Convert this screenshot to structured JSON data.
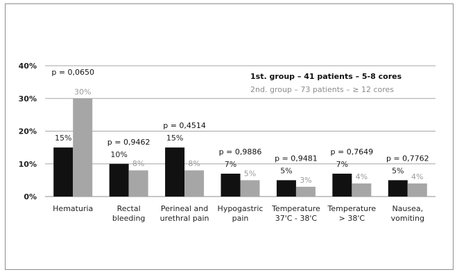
{
  "chart_data": {
    "type": "bar",
    "title": "",
    "xlabel": "",
    "ylabel": "",
    "ylim": [
      0,
      40
    ],
    "y_ticks": [
      "0%",
      "10%",
      "20%",
      "30%",
      "40%"
    ],
    "grid": true,
    "legend_placement": "top-right",
    "categories": [
      "Hematuria",
      "Rectal bleeding",
      "Perineal and urethral pain",
      "Hypogastric pain",
      "Temperature 37'C - 38'C",
      "Temperature > 38'C",
      "Nausea, vomiting"
    ],
    "category_lines": [
      [
        "Hematuria"
      ],
      [
        "Rectal",
        "bleeding"
      ],
      [
        "Perineal and",
        "urethral pain"
      ],
      [
        "Hypogastric",
        "pain"
      ],
      [
        "Temperature",
        "37'C - 38'C"
      ],
      [
        "Temperature",
        "> 38'C"
      ],
      [
        "Nausea,",
        "vomiting"
      ]
    ],
    "series": [
      {
        "name": "1st. group – 41 patients – 5-8 cores",
        "color": "#111111",
        "values": [
          15,
          10,
          15,
          7,
          5,
          7,
          5
        ],
        "labels": [
          "15%",
          "10%",
          "15%",
          "7%",
          "5%",
          "7%",
          "5%"
        ]
      },
      {
        "name": "2nd. group – 73 patients – ≥ 12 cores",
        "color": "#a6a6a6",
        "values": [
          30,
          8,
          8,
          5,
          3,
          4,
          4
        ],
        "labels": [
          "30%",
          "8%",
          "8%",
          "5%",
          "3%",
          "4%",
          "4%"
        ]
      }
    ],
    "p_values": [
      "p = 0,0650",
      "p = 0,9462",
      "p = 0,4514",
      "p = 0,9886",
      "p = 0,9481",
      "p = 0,7649",
      "p = 0,7762"
    ]
  }
}
